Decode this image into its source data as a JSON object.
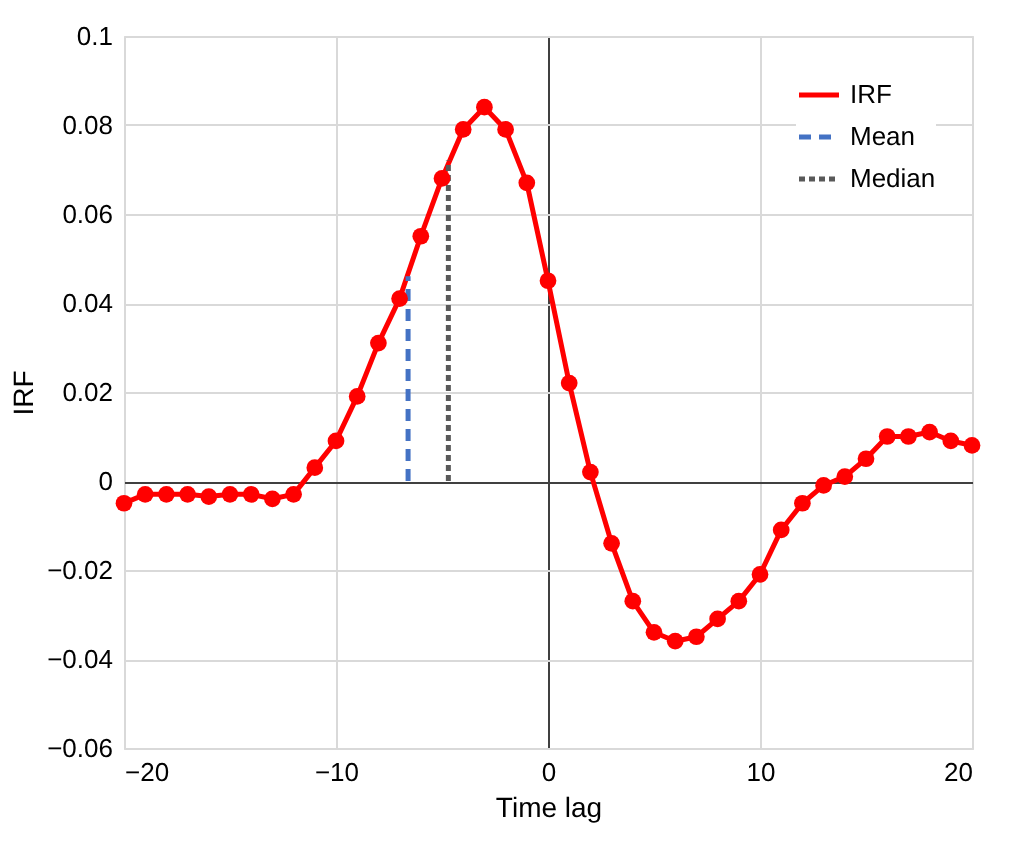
{
  "chart_data": {
    "type": "line",
    "xlabel": "Time lag",
    "ylabel": "IRF",
    "xlim": [
      -20,
      20
    ],
    "xticks": [
      -20,
      -10,
      0,
      10,
      20
    ],
    "ylim": [
      -0.06,
      0.1
    ],
    "yticks": [
      -0.06,
      -0.04,
      -0.02,
      0,
      0.02,
      0.04,
      0.06,
      0.08,
      0.1
    ],
    "grid": true,
    "legend": "top right",
    "series": [
      {
        "name": "IRF",
        "color": "#ff0000",
        "marker": "circle",
        "line_style": "solid",
        "x": [
          -20,
          -19,
          -18,
          -17,
          -16,
          -15,
          -14,
          -13,
          -12,
          -11,
          -10,
          -9,
          -8,
          -7,
          -6,
          -5,
          -4,
          -3,
          -2,
          -1,
          0,
          1,
          2,
          3,
          4,
          5,
          6,
          7,
          8,
          9,
          10,
          11,
          12,
          13,
          14,
          15,
          16,
          17,
          18,
          19,
          20
        ],
        "values": [
          -0.005,
          -0.003,
          -0.003,
          -0.003,
          -0.0035,
          -0.003,
          -0.003,
          -0.004,
          -0.003,
          0.003,
          0.009,
          0.019,
          0.031,
          0.041,
          0.055,
          0.068,
          0.079,
          0.084,
          0.079,
          0.067,
          0.045,
          0.022,
          0.002,
          -0.014,
          -0.027,
          -0.034,
          -0.036,
          -0.035,
          -0.031,
          -0.027,
          -0.021,
          -0.011,
          -0.005,
          -0.001,
          0.001,
          0.005,
          0.01,
          0.01,
          0.011,
          0.009,
          0.008
        ]
      },
      {
        "name": "Mean",
        "color": "#4472c4",
        "marker": "none",
        "line_style": "dashed",
        "x": [
          -6.6,
          -6.6
        ],
        "values": [
          0,
          0.046
        ]
      },
      {
        "name": "Median",
        "color": "#595959",
        "marker": "none",
        "line_style": "dotted",
        "x": [
          -4.7,
          -4.7
        ],
        "values": [
          0,
          0.072
        ]
      }
    ]
  }
}
